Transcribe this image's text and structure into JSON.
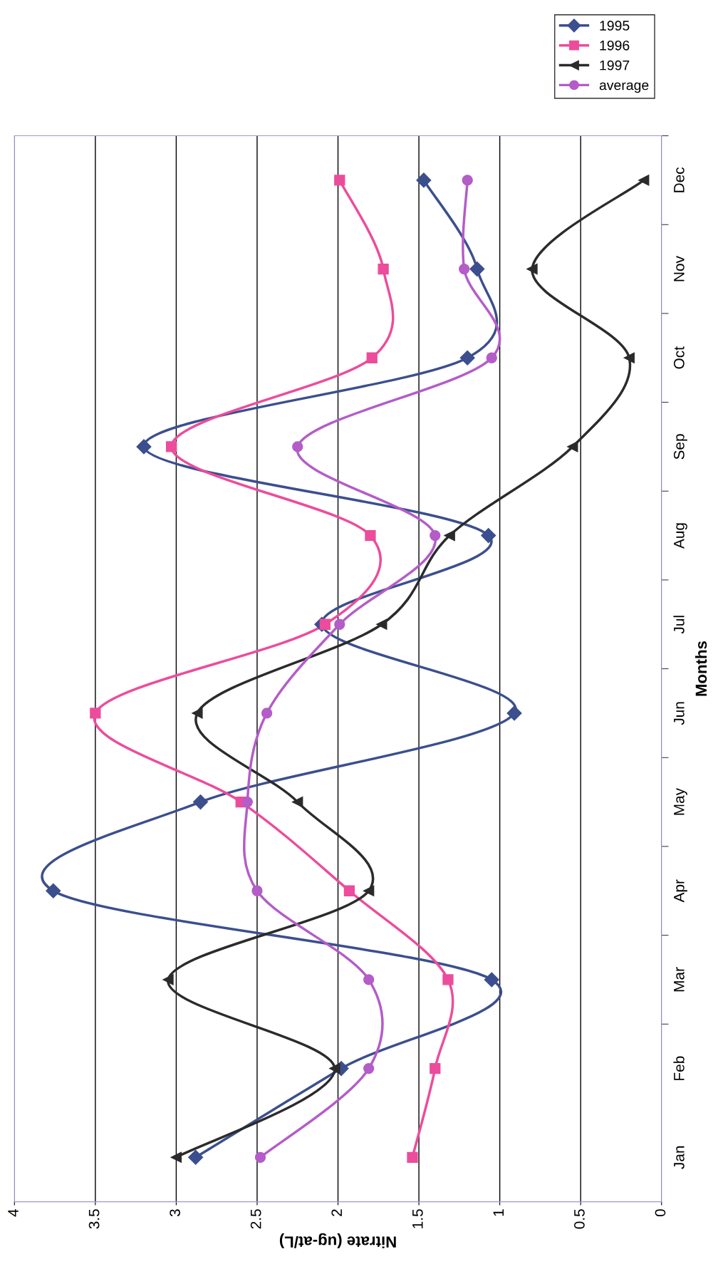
{
  "chart_data": {
    "type": "line",
    "orientation": "horizontal",
    "xlabel": "Nitrate (ug-at/L)",
    "ylabel": "Months",
    "categories": [
      "Dec",
      "Nov",
      "Oct",
      "Sep",
      "Aug",
      "Jul",
      "Jun",
      "May",
      "Apr",
      "Mar",
      "Feb",
      "Jan"
    ],
    "xlim": [
      4,
      0
    ],
    "xticks": [
      4,
      3.5,
      3,
      2.5,
      2,
      1.5,
      1,
      0.5,
      0
    ],
    "grid": "x",
    "legend": "top right",
    "series": [
      {
        "name": "1995",
        "color": "#3b4f8e",
        "marker": "diamond",
        "values": [
          1.47,
          1.14,
          1.2,
          3.2,
          1.07,
          2.1,
          0.91,
          2.85,
          3.76,
          1.05,
          1.98,
          2.88
        ]
      },
      {
        "name": "1996",
        "color": "#ec4c9c",
        "marker": "square",
        "values": [
          1.99,
          1.72,
          1.79,
          3.03,
          1.8,
          2.08,
          3.5,
          2.6,
          1.93,
          1.32,
          1.4,
          1.54
        ]
      },
      {
        "name": "1997",
        "color": "#2b2b2b",
        "marker": "triangle",
        "values": [
          0.11,
          0.8,
          0.2,
          0.55,
          1.31,
          1.73,
          2.87,
          2.25,
          1.81,
          3.05,
          2.02,
          3.0
        ]
      },
      {
        "name": "average",
        "color": "#b45cc8",
        "marker": "circle",
        "values": [
          1.2,
          1.22,
          1.05,
          2.25,
          1.4,
          1.99,
          2.44,
          2.56,
          2.5,
          1.81,
          1.81,
          2.48
        ]
      }
    ]
  }
}
